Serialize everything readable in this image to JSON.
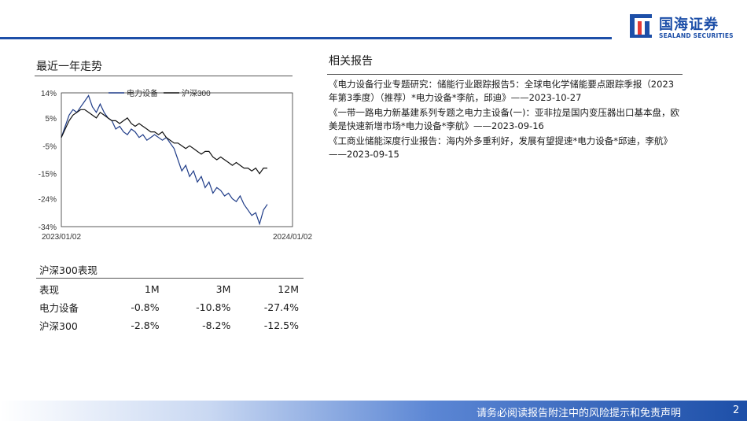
{
  "header": {
    "logo_cn": "国海证券",
    "logo_en": "SEALAND SECURITIES",
    "brand_color": "#1d4fa8"
  },
  "trend": {
    "title": "最近一年走势"
  },
  "related": {
    "title": "相关报告",
    "items": [
      "《电力设备行业专题研究：储能行业跟踪报告5：全球电化学储能要点跟踪季报（2023年第3季度）（推荐）*电力设备*李航，邱迪》——2023-10-27",
      "《一带一路电力新基建系列专题之电力主设备(一)：亚非拉是国内变压器出口基本盘，欧美是快速新增市场*电力设备*李航》——2023-09-16",
      "《工商业储能深度行业报告：海内外多重利好，发展有望提速*电力设备*邱迪，李航》——2023-09-15"
    ]
  },
  "chart_data": {
    "type": "line",
    "title": "",
    "xlabel": "",
    "ylabel": "",
    "x_tick_labels": [
      "2023/01/02",
      "2024/01/02"
    ],
    "y_tick_labels": [
      "14%",
      "5%",
      "-5%",
      "-15%",
      "-24%",
      "-34%"
    ],
    "y_ticks": [
      14,
      5,
      -5,
      -15,
      -24,
      -34
    ],
    "ylim": [
      -34,
      14
    ],
    "grid": false,
    "legend": "top",
    "series": [
      {
        "name": "电力设备",
        "color": "#1f3c88",
        "values": [
          -2,
          2,
          6,
          8,
          7,
          9,
          11,
          13,
          9,
          7,
          10,
          7,
          5,
          4,
          1,
          2,
          0,
          -1,
          1,
          0,
          -2,
          -1,
          -3,
          -2,
          -1,
          -2,
          -3,
          -2,
          -4,
          -6,
          -10,
          -14,
          -12,
          -16,
          -14,
          -18,
          -16,
          -20,
          -18,
          -22,
          -20,
          -21,
          -23,
          -22,
          -24,
          -25,
          -23,
          -26,
          -28,
          -30,
          -29,
          -33,
          -28,
          -26
        ]
      },
      {
        "name": "沪深300",
        "color": "#111111",
        "values": [
          -2,
          1,
          4,
          6,
          7,
          8,
          8,
          7,
          6,
          5,
          7,
          6,
          5,
          4,
          4,
          3,
          4,
          5,
          3,
          2,
          3,
          2,
          1,
          0,
          0,
          -1,
          0,
          -2,
          -3,
          -4,
          -4,
          -5,
          -6,
          -5,
          -6,
          -7,
          -8,
          -7,
          -7,
          -9,
          -10,
          -9,
          -10,
          -11,
          -12,
          -11,
          -12,
          -13,
          -13,
          -14,
          -13,
          -15,
          -13,
          -13
        ]
      }
    ]
  },
  "performance": {
    "title": "沪深300表现",
    "columns": [
      "表现",
      "1M",
      "3M",
      "12M"
    ],
    "rows": [
      [
        "电力设备",
        "-0.8%",
        "-10.8%",
        "-27.4%"
      ],
      [
        "沪深300",
        "-2.8%",
        "-8.2%",
        "-12.5%"
      ]
    ]
  },
  "footer": {
    "disclaimer": "请务必阅读报告附注中的风险提示和免责声明",
    "page": "2"
  }
}
